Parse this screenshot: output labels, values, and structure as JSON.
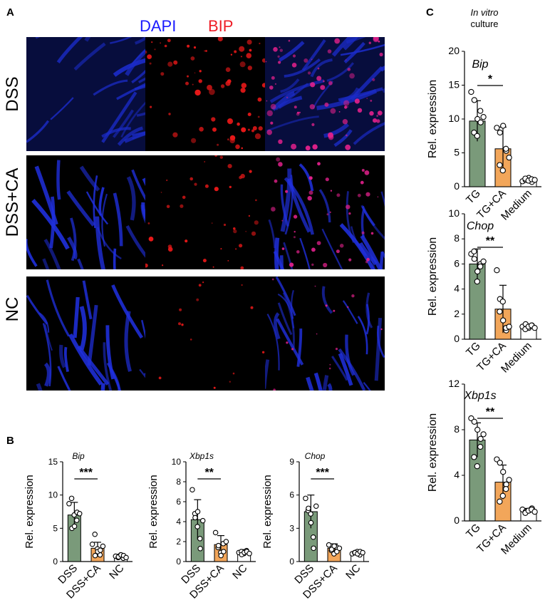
{
  "panels": {
    "a": "A",
    "b": "B",
    "c": "C"
  },
  "stains": {
    "dapi": "DAPI",
    "bip": "BIP",
    "dapi_color": "#1a1aff",
    "bip_color": "#ee1c25"
  },
  "rows": [
    "DSS",
    "DSS+CA",
    "NC"
  ],
  "panel_c_header": {
    "line1": "In vitro",
    "line2": "culture"
  },
  "colors": {
    "green": "#7a9a7a",
    "orange": "#f2a65a",
    "white": "#ffffff"
  },
  "chart_data": [
    {
      "type": "bar",
      "id": "b-bip",
      "title": "Bip",
      "categories": [
        "DSS",
        "DSS+CA",
        "NC"
      ],
      "values": [
        7.0,
        2.0,
        0.8
      ],
      "errors": [
        1.9,
        0.9,
        0.3
      ],
      "points": [
        [
          8.7,
          9.5,
          7.0,
          6.2,
          5.0,
          5.3,
          7.4,
          7.2
        ],
        [
          2.6,
          4.1,
          1.9,
          1.0,
          0.9,
          1.5,
          1.7,
          2.3
        ],
        [
          0.8,
          0.6,
          1.0,
          0.5,
          0.7,
          1.0,
          0.9,
          0.6
        ]
      ],
      "ylabel": "Rel. expression",
      "ylim": [
        0,
        15
      ],
      "yticks": [
        0,
        5,
        10,
        15
      ],
      "significance": "***"
    },
    {
      "type": "bar",
      "id": "b-xbp1s",
      "title": "Xbp1s",
      "categories": [
        "DSS",
        "DSS+CA",
        "NC"
      ],
      "values": [
        4.2,
        1.7,
        0.9
      ],
      "errors": [
        2.0,
        0.9,
        0.3
      ],
      "points": [
        [
          7.2,
          4.8,
          3.5,
          2.3,
          4.4,
          5.0,
          1.3,
          4.1
        ],
        [
          2.9,
          1.4,
          0.9,
          1.8,
          1.6,
          0.6,
          1.0,
          2.0
        ],
        [
          0.9,
          1.0,
          0.8,
          1.1,
          0.7,
          0.9,
          1.0,
          0.8
        ]
      ],
      "ylabel": "Rel. expression",
      "ylim": [
        0,
        10
      ],
      "yticks": [
        0,
        2,
        4,
        6,
        8,
        10
      ],
      "significance": "**"
    },
    {
      "type": "bar",
      "id": "b-chop",
      "title": "Chop",
      "categories": [
        "DSS",
        "DSS+CA",
        "NC"
      ],
      "values": [
        4.5,
        1.2,
        0.8
      ],
      "errors": [
        1.5,
        0.4,
        0.2
      ],
      "points": [
        [
          5.7,
          4.6,
          4.3,
          2.2,
          4.8,
          3.5,
          1.2,
          5.0
        ],
        [
          1.5,
          1.0,
          0.7,
          1.3,
          1.1,
          1.4,
          0.9,
          1.2
        ],
        [
          0.7,
          0.8,
          0.9,
          0.6,
          0.8,
          0.7,
          0.9,
          0.8
        ]
      ],
      "ylabel": "Rel. expression",
      "ylim": [
        0,
        9
      ],
      "yticks": [
        0,
        3,
        6,
        9
      ],
      "significance": "***"
    },
    {
      "type": "bar",
      "id": "c-bip",
      "title": "Bip",
      "categories": [
        "TG",
        "TG+CA",
        "Medium"
      ],
      "values": [
        9.7,
        5.6,
        1.0
      ],
      "errors": [
        3.0,
        3.2,
        0.3
      ],
      "points": [
        [
          14.0,
          12.8,
          10.0,
          9.5,
          8.0,
          7.5,
          11.2,
          10.3
        ],
        [
          8.7,
          8.0,
          9.0,
          5.3,
          3.2,
          2.4,
          5.6,
          4.3
        ],
        [
          0.8,
          1.0,
          1.3,
          0.7,
          1.2,
          0.9,
          1.1,
          1.0
        ]
      ],
      "ylabel": "Rel. expression",
      "ylim": [
        0,
        20
      ],
      "yticks": [
        0,
        5,
        10,
        15,
        20
      ],
      "significance": "*"
    },
    {
      "type": "bar",
      "id": "c-chop",
      "title": "Chop",
      "categories": [
        "TG",
        "TG+CA",
        "Medium"
      ],
      "values": [
        6.0,
        2.4,
        1.0
      ],
      "errors": [
        1.2,
        1.9,
        0.2
      ],
      "points": [
        [
          6.8,
          6.4,
          5.4,
          6.0,
          7.0,
          4.6,
          5.8,
          6.2
        ],
        [
          5.5,
          3.2,
          1.5,
          0.7,
          2.2,
          3.0,
          0.9,
          1.0
        ],
        [
          1.0,
          1.2,
          0.9,
          1.1,
          0.8,
          1.0,
          1.1,
          0.9
        ]
      ],
      "ylabel": "Rel. expression",
      "ylim": [
        0,
        10
      ],
      "yticks": [
        0,
        2,
        4,
        6,
        8,
        10
      ],
      "significance": "**"
    },
    {
      "type": "bar",
      "id": "c-xbp1s",
      "title": "Xbp1s",
      "categories": [
        "TG",
        "TG+CA",
        "Medium"
      ],
      "values": [
        7.1,
        3.4,
        0.9
      ],
      "errors": [
        1.5,
        1.5,
        0.2
      ],
      "points": [
        [
          9.0,
          8.7,
          8.0,
          7.2,
          5.6,
          4.8,
          6.5,
          7.6
        ],
        [
          5.4,
          5.1,
          4.3,
          3.2,
          1.7,
          2.2,
          2.8,
          3.6
        ],
        [
          1.0,
          0.8,
          0.9,
          1.1,
          0.7,
          0.9,
          1.0,
          0.8
        ]
      ],
      "ylabel": "Rel. expression",
      "ylim": [
        0,
        12
      ],
      "yticks": [
        0,
        4,
        8,
        12
      ],
      "significance": "**"
    }
  ]
}
